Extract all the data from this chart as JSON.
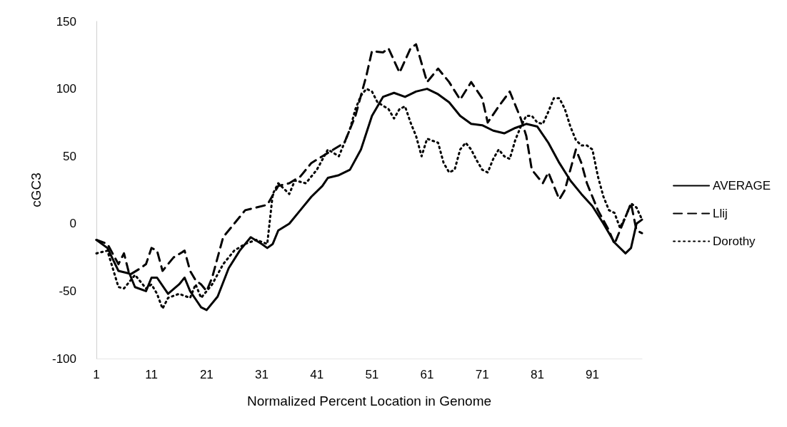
{
  "chart_data": {
    "type": "line",
    "xlabel": "Normalized Percent Location in Genome",
    "ylabel": "cGC3",
    "xlim": [
      1,
      100
    ],
    "xticks": [
      1,
      11,
      21,
      31,
      41,
      51,
      61,
      71,
      81,
      91
    ],
    "ylim": [
      -100,
      150
    ],
    "yticks": [
      -100,
      -50,
      0,
      50,
      100,
      150
    ],
    "grid": false,
    "legend": "right",
    "marker": "none",
    "series": [
      {
        "name": "AVERAGE",
        "color": "#000000",
        "line_style": "solid",
        "x": [
          1,
          3,
          5,
          7,
          8,
          10,
          11,
          12,
          14,
          16,
          17,
          18,
          19,
          20,
          21,
          23,
          25,
          27,
          29,
          31,
          32,
          33,
          34,
          36,
          38,
          40,
          42,
          43,
          45,
          47,
          49,
          51,
          53,
          55,
          57,
          59,
          61,
          63,
          65,
          67,
          69,
          71,
          73,
          75,
          77,
          79,
          81,
          83,
          85,
          87,
          89,
          91,
          93,
          95,
          97,
          98,
          99,
          100
        ],
        "values": [
          -12,
          -18,
          -35,
          -37,
          -47,
          -50,
          -40,
          -40,
          -52,
          -45,
          -40,
          -50,
          -56,
          -62,
          -64,
          -54,
          -33,
          -20,
          -10,
          -15,
          -18,
          -15,
          -5,
          0,
          10,
          20,
          28,
          34,
          36,
          40,
          55,
          80,
          94,
          97,
          94,
          98,
          100,
          96,
          90,
          80,
          74,
          73,
          69,
          67,
          71,
          74,
          72,
          60,
          45,
          32,
          22,
          13,
          0,
          -14,
          -22,
          -18,
          0,
          3
        ]
      },
      {
        "name": "Llij",
        "color": "#000000",
        "line_style": "dashed",
        "x": [
          1,
          3,
          5,
          6,
          7,
          9,
          10,
          11,
          12,
          13,
          15,
          17,
          18,
          19,
          20,
          21,
          22,
          24,
          26,
          28,
          30,
          32,
          34,
          36,
          38,
          40,
          42,
          44,
          46,
          48,
          50,
          51,
          53,
          54,
          56,
          58,
          59,
          61,
          63,
          65,
          67,
          69,
          71,
          72,
          74,
          76,
          78,
          79,
          80,
          82,
          83,
          85,
          86,
          88,
          89,
          90,
          92,
          94,
          95,
          96,
          97,
          98,
          99,
          100
        ],
        "values": [
          -12,
          -15,
          -30,
          -22,
          -38,
          -33,
          -30,
          -18,
          -20,
          -35,
          -25,
          -20,
          -35,
          -42,
          -45,
          -50,
          -40,
          -10,
          0,
          10,
          12,
          14,
          28,
          30,
          35,
          45,
          50,
          55,
          60,
          80,
          110,
          128,
          127,
          130,
          112,
          130,
          133,
          105,
          115,
          105,
          92,
          105,
          93,
          75,
          87,
          98,
          78,
          65,
          40,
          30,
          38,
          18,
          25,
          55,
          45,
          30,
          10,
          -5,
          -15,
          -5,
          5,
          15,
          -5,
          -7
        ]
      },
      {
        "name": "Dorothy",
        "color": "#000000",
        "line_style": "dotted",
        "x": [
          1,
          3,
          5,
          6,
          8,
          10,
          11,
          12,
          13,
          14,
          16,
          18,
          19,
          20,
          22,
          24,
          26,
          28,
          30,
          32,
          33,
          34,
          36,
          37,
          39,
          41,
          43,
          45,
          47,
          48,
          49,
          50,
          51,
          52,
          54,
          55,
          56,
          57,
          58,
          59,
          60,
          61,
          63,
          64,
          65,
          66,
          67,
          68,
          69,
          70,
          71,
          72,
          73,
          74,
          75,
          76,
          77,
          78,
          79,
          80,
          81,
          82,
          83,
          84,
          85,
          86,
          87,
          88,
          89,
          90,
          91,
          92,
          93,
          94,
          95,
          96,
          97,
          98,
          99,
          100
        ],
        "values": [
          -22,
          -20,
          -47,
          -48,
          -38,
          -48,
          -45,
          -52,
          -63,
          -55,
          -52,
          -55,
          -45,
          -55,
          -45,
          -30,
          -20,
          -15,
          -12,
          -15,
          22,
          30,
          22,
          32,
          30,
          40,
          55,
          50,
          70,
          85,
          95,
          100,
          98,
          90,
          85,
          78,
          85,
          87,
          75,
          65,
          50,
          63,
          60,
          45,
          38,
          40,
          55,
          60,
          55,
          47,
          40,
          38,
          48,
          55,
          50,
          48,
          62,
          72,
          80,
          80,
          75,
          74,
          83,
          93,
          93,
          85,
          72,
          62,
          58,
          58,
          55,
          35,
          20,
          10,
          8,
          -3,
          5,
          15,
          12,
          3
        ]
      }
    ]
  }
}
